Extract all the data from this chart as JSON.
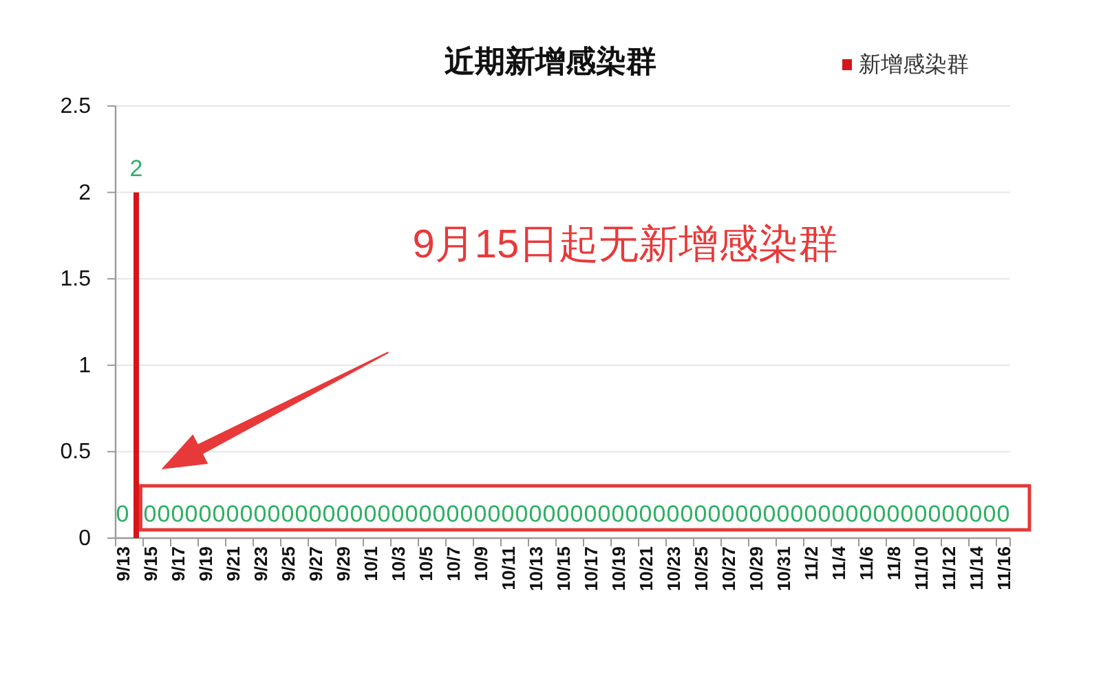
{
  "chart_data": {
    "type": "bar",
    "title": "近期新增感染群",
    "categories": [
      "9/13",
      null,
      "9/15",
      null,
      "9/17",
      null,
      "9/19",
      null,
      "9/21",
      null,
      "9/23",
      null,
      "9/25",
      null,
      "9/27",
      null,
      "9/29",
      null,
      "10/1",
      null,
      "10/3",
      null,
      "10/5",
      null,
      "10/7",
      null,
      "10/9",
      null,
      "10/11",
      null,
      "10/13",
      null,
      "10/15",
      null,
      "10/17",
      null,
      "10/19",
      null,
      "10/21",
      null,
      "10/23",
      null,
      "10/25",
      null,
      "10/27",
      null,
      "10/29",
      null,
      "10/31",
      null,
      "11/2",
      null,
      "11/4",
      null,
      "11/6",
      null,
      "11/8",
      null,
      "11/10",
      null,
      "11/12",
      null,
      "11/14",
      null,
      "11/16"
    ],
    "series": [
      {
        "name": "新增感染群",
        "color": "#d7141a",
        "values": [
          0,
          2,
          0,
          0,
          0,
          0,
          0,
          0,
          0,
          0,
          0,
          0,
          0,
          0,
          0,
          0,
          0,
          0,
          0,
          0,
          0,
          0,
          0,
          0,
          0,
          0,
          0,
          0,
          0,
          0,
          0,
          0,
          0,
          0,
          0,
          0,
          0,
          0,
          0,
          0,
          0,
          0,
          0,
          0,
          0,
          0,
          0,
          0,
          0,
          0,
          0,
          0,
          0,
          0,
          0,
          0,
          0,
          0,
          0,
          0,
          0,
          0,
          0,
          0,
          0
        ]
      }
    ],
    "ylim": [
      0,
      2.5
    ],
    "yticks": [
      0,
      0.5,
      1,
      1.5,
      2,
      2.5
    ],
    "grid": "y",
    "legend": "top right",
    "data_labels": true,
    "annotations": [
      "9月15日起无新增感染群"
    ]
  }
}
